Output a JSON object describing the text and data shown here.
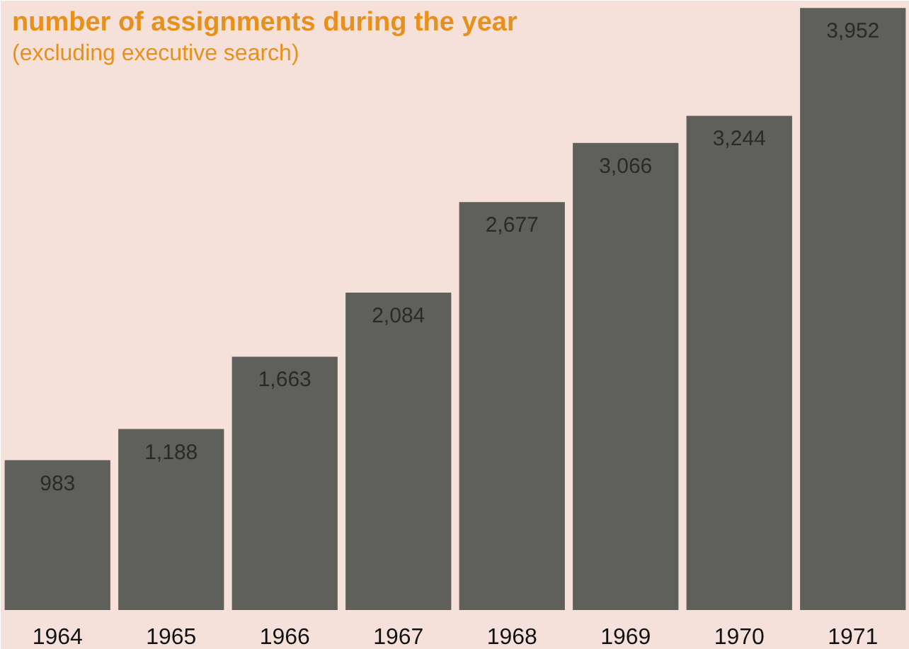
{
  "chart_data": {
    "type": "bar",
    "title": "number of assignments during the year",
    "subtitle": "(excluding executive search)",
    "categories": [
      "1964",
      "1965",
      "1966",
      "1967",
      "1968",
      "1969",
      "1970",
      "1971"
    ],
    "values": [
      983,
      1188,
      1663,
      2084,
      2677,
      3066,
      3244,
      3952
    ],
    "value_labels": [
      "983",
      "1,188",
      "1,663",
      "2,084",
      "2,677",
      "3,066",
      "3,244",
      "3,952"
    ],
    "color": "#5f5f5b",
    "grid": false
  }
}
